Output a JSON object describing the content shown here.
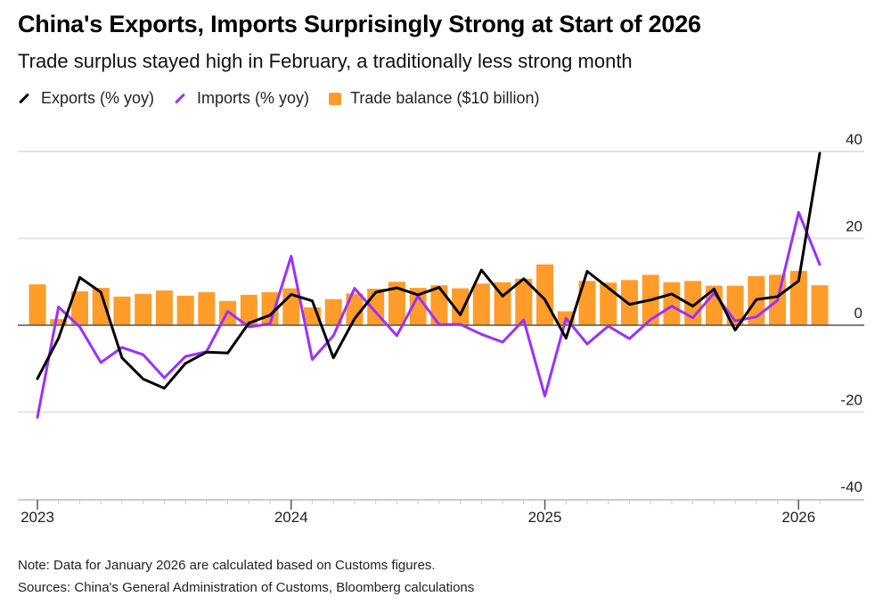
{
  "chart_data": {
    "type": "bar+line",
    "title": "China's Exports, Imports Surprisingly Strong at Start of 2026",
    "subtitle": "Trade surplus stayed high in February, a traditionally less strong month",
    "legend": [
      {
        "name": "Exports (% yoy)",
        "color": "#000000",
        "kind": "line"
      },
      {
        "name": "Imports (% yoy)",
        "color": "#9b30ff",
        "kind": "line"
      },
      {
        "name": "Trade balance ($10 billion)",
        "color": "#ff9c2a",
        "kind": "bar"
      }
    ],
    "legend_position": "top-left",
    "x_start": "2023-01",
    "x_end": "2026-02",
    "x_tick_labels": [
      "2023",
      "2024",
      "2025",
      "2026"
    ],
    "y_ticks": [
      40,
      20,
      0,
      -20,
      -40
    ],
    "y_tick_labels": [
      "40",
      "20",
      "0",
      "-20",
      "-40"
    ],
    "ylim": [
      -40,
      40
    ],
    "y_axis_side": "right",
    "grid": true,
    "series": [
      {
        "name": "Exports (% yoy)",
        "type": "line",
        "color": "#000000",
        "values": [
          -12.3,
          -3,
          11,
          7.6,
          -7.5,
          -12.4,
          -14.5,
          -8.8,
          -6.2,
          -6.4,
          0.5,
          2.3,
          7.1,
          5.6,
          -7.5,
          1.5,
          7.6,
          8.6,
          7,
          8.7,
          2.4,
          12.7,
          6.7,
          10.7,
          5.9,
          -3,
          12.4,
          8.6,
          4.8,
          5.8,
          7.2,
          4.4,
          8.3,
          -1.1,
          5.9,
          6.6,
          10.2,
          39.6
        ]
      },
      {
        "name": "Imports (% yoy)",
        "type": "line",
        "color": "#9b30ff",
        "values": [
          -21.2,
          4.2,
          -0.4,
          -8.6,
          -5.1,
          -6.8,
          -12.1,
          -7.2,
          -6.1,
          3.2,
          -0.4,
          0.3,
          15.9,
          -7.9,
          -2.4,
          8.5,
          3,
          -2.4,
          6.7,
          0.1,
          0.2,
          -2.1,
          -3.9,
          1.2,
          -16.3,
          1.6,
          -4.3,
          -0.2,
          -3.1,
          1.3,
          4.4,
          1.7,
          7.4,
          1,
          1.9,
          5.7,
          26,
          14
        ]
      },
      {
        "name": "Trade balance ($10 billion)",
        "type": "bar",
        "color": "#ff9c2a",
        "values": [
          9.4,
          1.4,
          7.8,
          8.6,
          6.6,
          7.2,
          8,
          6.8,
          7.6,
          5.6,
          7,
          7.6,
          8.5,
          4.1,
          6,
          7.3,
          8.4,
          10,
          8.6,
          9.2,
          8.5,
          9.6,
          9.9,
          10.7,
          14,
          3.2,
          10.2,
          9.8,
          10.4,
          11.6,
          9.9,
          10.2,
          9.1,
          9.1,
          11.3,
          11.6,
          12.5,
          9.2
        ]
      }
    ],
    "note": "Note: Data for January 2026 are calculated based on Customs figures.",
    "sources": "Sources: China's General Administration of Customs, Bloomberg calculations"
  }
}
